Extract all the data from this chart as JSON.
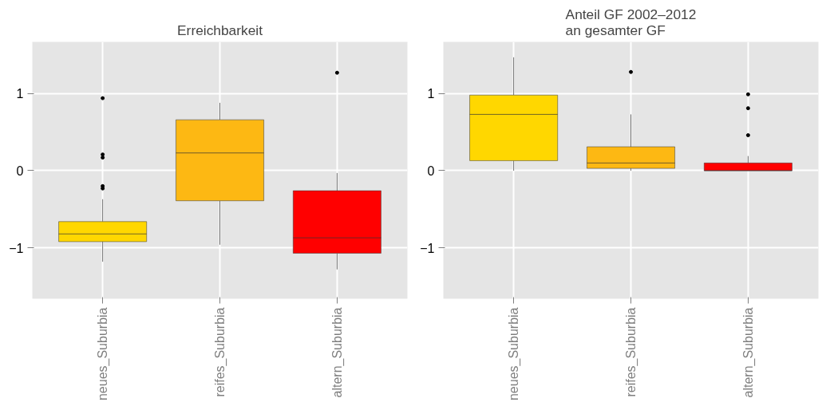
{
  "chart_data": [
    {
      "type": "box",
      "title": "Erreichbarkeit",
      "categories": [
        "neues_Suburbia",
        "reifes_Suburbia",
        "altern_Suburbia"
      ],
      "colors": [
        "#ffd700",
        "#fdb813",
        "#ff0000"
      ],
      "ylim": [
        -1.66,
        1.67
      ],
      "yticks": [
        -1,
        0,
        1
      ],
      "grid": true,
      "boxes": [
        {
          "low": -1.18,
          "q1": -0.92,
          "median": -0.82,
          "q3": -0.66,
          "high": -0.37,
          "outliers": [
            0.94,
            0.21,
            0.17,
            -0.2,
            -0.23
          ]
        },
        {
          "low": -0.96,
          "q1": -0.39,
          "median": 0.23,
          "q3": 0.66,
          "high": 0.88
        },
        {
          "low": -1.28,
          "q1": -1.07,
          "median": -0.87,
          "q3": -0.26,
          "high": -0.03,
          "outliers": [
            1.27
          ]
        }
      ]
    },
    {
      "type": "box",
      "title": "Anteil GF 2002–2012\nan gesamter GF",
      "categories": [
        "neues_Suburbia",
        "reifes_Suburbia",
        "altern_Suburbia"
      ],
      "colors": [
        "#ffd700",
        "#fdb813",
        "#ff0000"
      ],
      "ylim": [
        -1.66,
        1.67
      ],
      "yticks": [
        -1,
        0,
        1
      ],
      "grid": true,
      "boxes": [
        {
          "low": 0,
          "q1": 0.13,
          "median": 0.73,
          "q3": 0.98,
          "high": 1.47
        },
        {
          "low": 0,
          "q1": 0.03,
          "median": 0.1,
          "q3": 0.31,
          "high": 0.73,
          "outliers": [
            1.28
          ]
        },
        {
          "low": 0,
          "q1": 0,
          "median": 0,
          "q3": 0.1,
          "high": 0.19,
          "outliers": [
            0.99,
            0.81,
            0.46
          ]
        }
      ]
    }
  ]
}
